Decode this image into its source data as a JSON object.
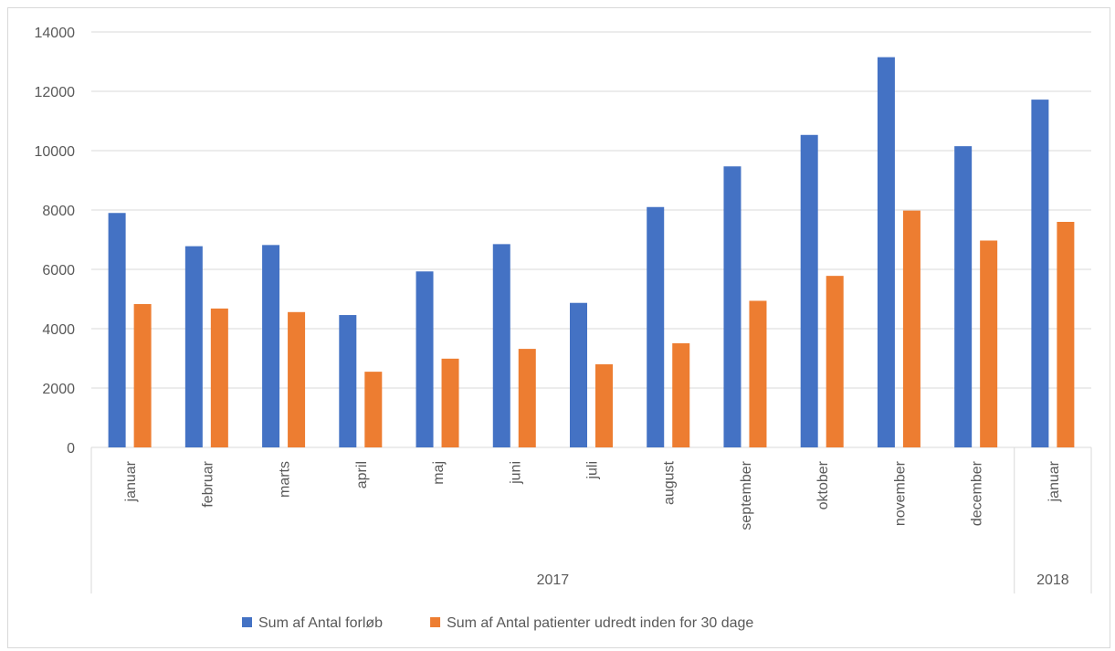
{
  "chart_data": {
    "type": "bar",
    "categories": [
      "januar",
      "februar",
      "marts",
      "april",
      "maj",
      "juni",
      "juli",
      "august",
      "september",
      "oktober",
      "november",
      "december",
      "januar"
    ],
    "groups": [
      {
        "label": "2017",
        "count": 12
      },
      {
        "label": "2018",
        "count": 1
      }
    ],
    "series": [
      {
        "name": "Sum af Antal forløb",
        "color": "#4472c4",
        "values": [
          7900,
          6780,
          6820,
          4460,
          5930,
          6850,
          4870,
          8100,
          9470,
          10530,
          13150,
          10150,
          11720
        ]
      },
      {
        "name": "Sum af Antal patienter udredt inden for 30 dage",
        "color": "#ed7d31",
        "values": [
          4830,
          4680,
          4560,
          2550,
          2990,
          3320,
          2800,
          3510,
          4940,
          5780,
          7980,
          6970,
          7600
        ]
      }
    ],
    "ylim": [
      0,
      14000
    ],
    "yticks": [
      0,
      2000,
      4000,
      6000,
      8000,
      10000,
      12000,
      14000
    ],
    "grid": true,
    "legend_position": "bottom",
    "title": "",
    "xlabel": "",
    "ylabel": ""
  }
}
